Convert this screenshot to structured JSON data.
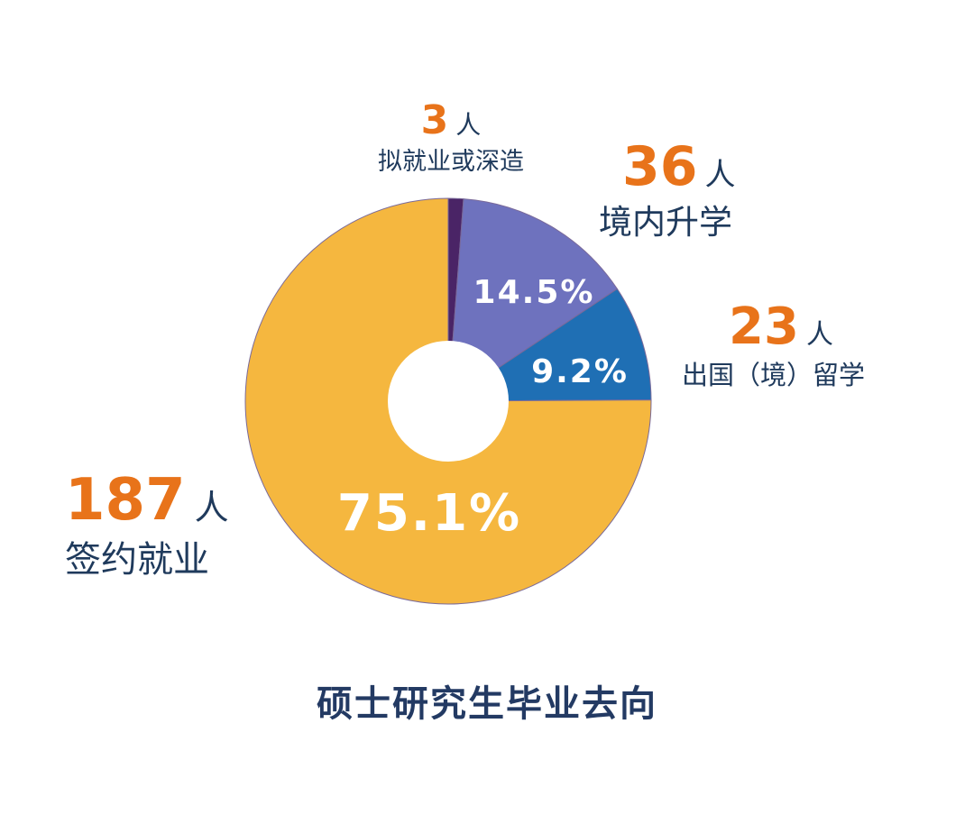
{
  "chart_data": {
    "type": "pie",
    "title": "硕士研究生毕业去向",
    "donut": true,
    "start_angle": "12 o'clock, clockwise",
    "slices": [
      {
        "label": "拟就业或深造",
        "count": 3,
        "unit": "人",
        "percent": 1.2,
        "percent_label": "",
        "color": "#4a2466"
      },
      {
        "label": "境内升学",
        "count": 36,
        "unit": "人",
        "percent": 14.5,
        "percent_label": "14.5%",
        "color": "#6e72be"
      },
      {
        "label": "出国（境）留学",
        "count": 23,
        "unit": "人",
        "percent": 9.2,
        "percent_label": "9.2%",
        "color": "#1f6fb4"
      },
      {
        "label": "签约就业",
        "count": 187,
        "unit": "人",
        "percent": 75.1,
        "percent_label": "75.1%",
        "color": "#f5b73f"
      }
    ]
  },
  "labels": {
    "s0": {
      "num": "3",
      "unit": "人",
      "text": "拟就业或深造"
    },
    "s1": {
      "num": "36",
      "unit": "人",
      "text": "境内升学"
    },
    "s2": {
      "num": "23",
      "unit": "人",
      "text": "出国（境）留学"
    },
    "s3": {
      "num": "187",
      "unit": "人",
      "text": "签约就业"
    }
  },
  "title": "硕士研究生毕业去向"
}
